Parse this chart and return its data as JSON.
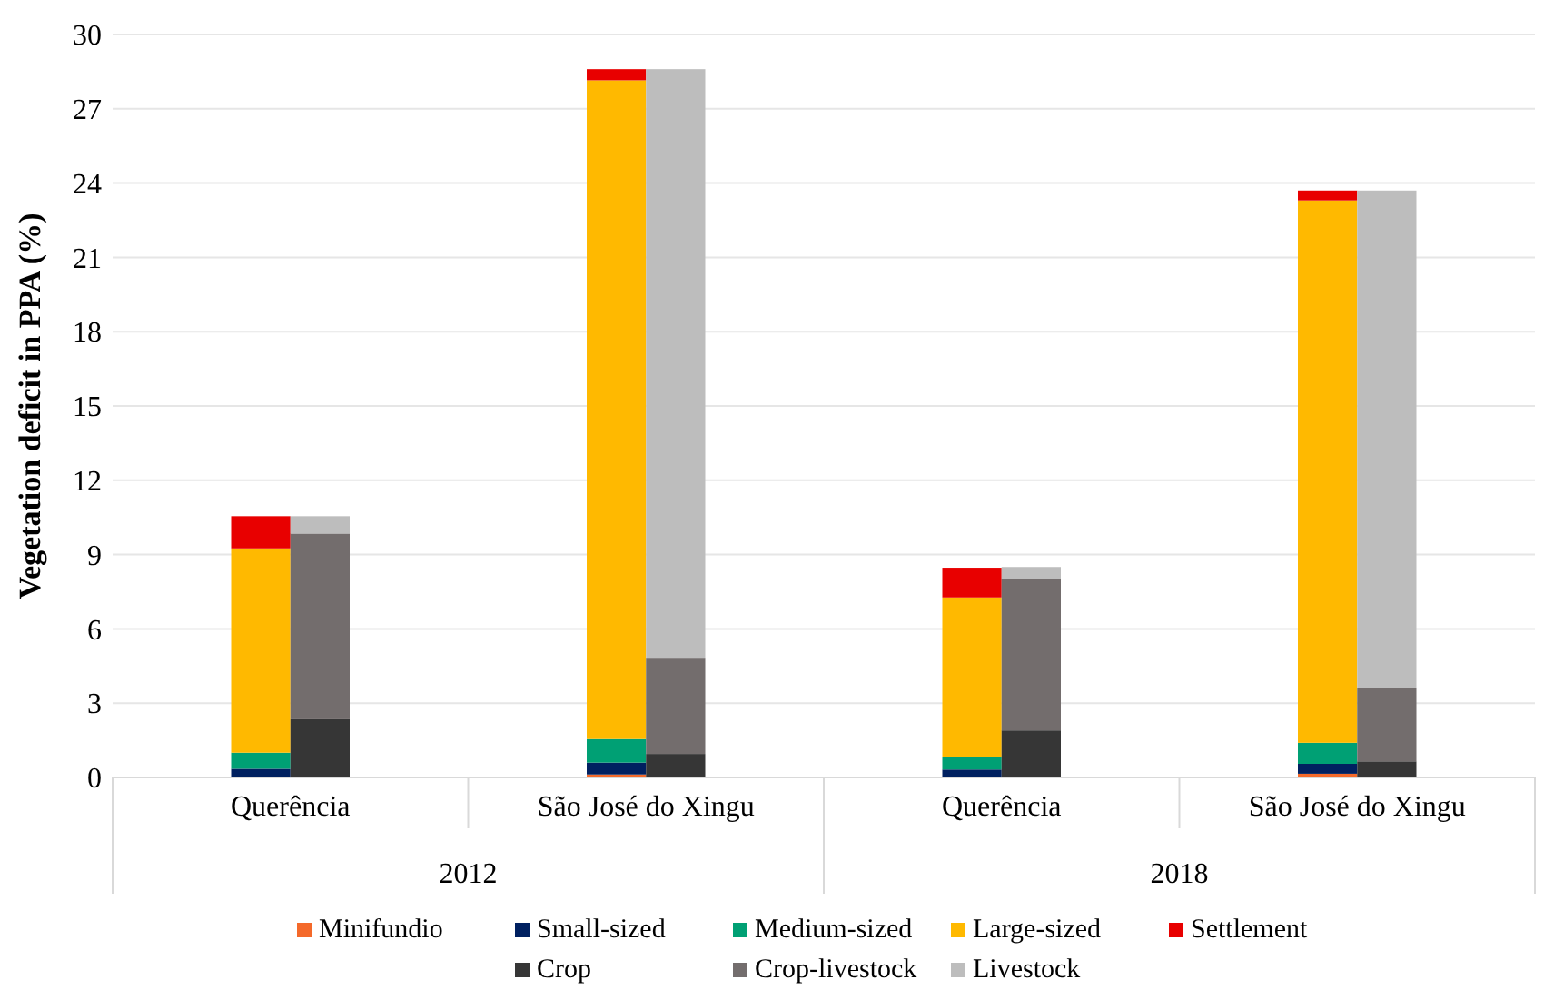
{
  "chart_data": {
    "type": "bar",
    "stacked": true,
    "ylabel": "Vegetation deficit in PPA (%)",
    "categories": [
      null,
      null,
      "Querência",
      null,
      null,
      null,
      null,
      null,
      "São José do Xingu",
      null,
      null,
      null,
      null,
      null,
      "Querência",
      null,
      null,
      null,
      null,
      null,
      "São José do Xingu",
      null,
      null,
      null
    ],
    "annotations": [
      "2012",
      "2018"
    ],
    "ylim": [
      0,
      30
    ],
    "yticks": [
      0,
      3,
      6,
      9,
      12,
      15,
      18,
      21,
      24,
      27,
      30
    ],
    "grid": "y",
    "legend": "bottom",
    "series": [
      {
        "name": "Minifundio",
        "color": "#f4692a",
        "values": [
          null,
          null,
          null,
          null,
          null,
          null,
          null,
          null,
          0.12,
          null,
          null,
          null,
          null,
          null,
          null,
          null,
          null,
          null,
          null,
          null,
          0.15,
          null,
          null,
          null
        ]
      },
      {
        "name": "Small-sized",
        "color": "#002060",
        "values": [
          null,
          null,
          0.35,
          null,
          null,
          null,
          null,
          null,
          0.48,
          null,
          null,
          null,
          null,
          null,
          0.32,
          null,
          null,
          null,
          null,
          null,
          0.4,
          null,
          null,
          null
        ]
      },
      {
        "name": "Medium-sized",
        "color": "#00a074",
        "values": [
          null,
          null,
          0.65,
          null,
          null,
          null,
          null,
          null,
          0.95,
          null,
          null,
          null,
          null,
          null,
          0.5,
          null,
          null,
          null,
          null,
          null,
          0.85,
          null,
          null,
          null
        ]
      },
      {
        "name": "Large-sized",
        "color": "#ffb900",
        "values": [
          null,
          null,
          8.25,
          null,
          null,
          null,
          null,
          null,
          26.6,
          null,
          null,
          null,
          null,
          null,
          6.45,
          null,
          null,
          null,
          null,
          null,
          21.9,
          null,
          null,
          null
        ]
      },
      {
        "name": "Settlement",
        "color": "#e80000",
        "values": [
          null,
          null,
          1.3,
          null,
          null,
          null,
          null,
          null,
          0.45,
          null,
          null,
          null,
          null,
          null,
          1.2,
          null,
          null,
          null,
          null,
          null,
          0.4,
          null,
          null,
          null
        ]
      },
      {
        "name": "Crop",
        "color": "#363636",
        "values": [
          null,
          null,
          null,
          2.35,
          null,
          null,
          null,
          null,
          null,
          0.95,
          null,
          null,
          null,
          null,
          null,
          1.9,
          null,
          null,
          null,
          null,
          null,
          0.65,
          null,
          null
        ]
      },
      {
        "name": "Crop-livestock",
        "color": "#736d6d",
        "values": [
          null,
          null,
          null,
          7.5,
          null,
          null,
          null,
          null,
          null,
          3.85,
          null,
          null,
          null,
          null,
          null,
          6.1,
          null,
          null,
          null,
          null,
          null,
          2.95,
          null,
          null
        ]
      },
      {
        "name": "Livestock",
        "color": "#bdbdbd",
        "values": [
          null,
          null,
          null,
          0.7,
          null,
          null,
          null,
          null,
          null,
          23.8,
          null,
          null,
          null,
          null,
          null,
          0.5,
          null,
          null,
          null,
          null,
          null,
          20.1,
          null,
          null
        ]
      }
    ]
  }
}
